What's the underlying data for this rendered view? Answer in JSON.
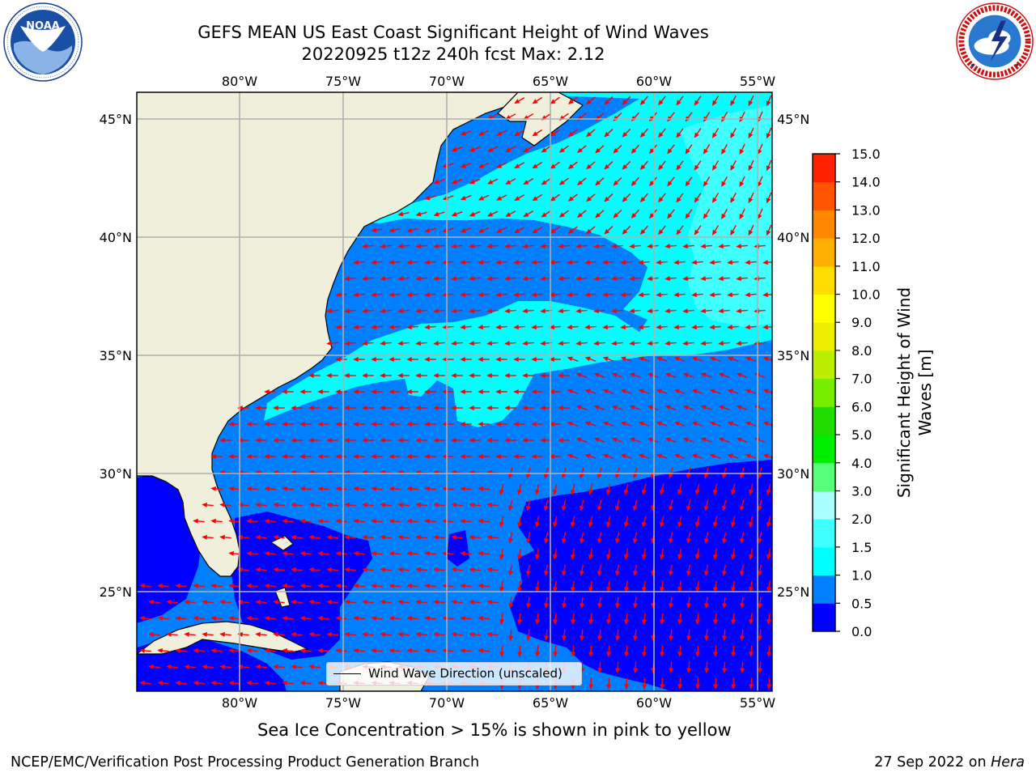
{
  "header": {
    "title_line1": "GEFS MEAN US East Coast Significant Height of Wind Waves",
    "title_line2": "20220925 t12z 240h fcst   Max: 2.12"
  },
  "logos": {
    "left": {
      "name": "NOAA",
      "text": "NOAA",
      "ring_text": "NATIONAL OCEANIC AND ATMOSPHERIC ADMINISTRATION · U.S. DEPARTMENT OF COMMERCE"
    },
    "right": {
      "name": "National Weather Service",
      "ring_text": "NATIONAL WEATHER SERVICE"
    }
  },
  "map": {
    "lon_ticks": [
      "80°W",
      "75°W",
      "70°W",
      "65°W",
      "60°W",
      "55°W"
    ],
    "lat_ticks": [
      "45°N",
      "40°N",
      "35°N",
      "30°N",
      "25°N"
    ],
    "extent": {
      "lon": [
        -85,
        -54.5
      ],
      "lat": [
        20.5,
        46
      ]
    },
    "colors": {
      "land": "#efefdc",
      "grid": "#b0b0b0",
      "arrow": "#ff0000",
      "band_0_0p5": "#0000ff",
      "band_0p5_1p0": "#0080ff",
      "band_1p0_1p5": "#00ffff",
      "band_1p5_2p0": "#3fffff"
    },
    "legend_label": "Wind Wave Direction (unscaled)"
  },
  "colorbar": {
    "label_line1": "Significant Height of Wind",
    "label_line2": "Waves [m]",
    "ticks": [
      "0.0",
      "0.5",
      "1.0",
      "1.5",
      "2.0",
      "3.0",
      "4.0",
      "5.0",
      "6.0",
      "7.0",
      "8.0",
      "9.0",
      "10.0",
      "11.0",
      "12.0",
      "13.0",
      "14.0",
      "15.0"
    ],
    "colors": [
      "#0000ff",
      "#0080ff",
      "#00ffff",
      "#3fffff",
      "#aaffff",
      "#55ff77",
      "#00ee00",
      "#22dd00",
      "#77ee00",
      "#bbee00",
      "#eeee00",
      "#ffff00",
      "#ffdd00",
      "#ffb000",
      "#ff8800",
      "#ff5500",
      "#ff2200",
      "#ff0000"
    ]
  },
  "footer": {
    "subtitle": "Sea Ice Concentration > 15% is shown in pink to yellow",
    "left": "NCEP/EMC/Verification Post Processing Product Generation Branch",
    "right_date": "27 Sep 2022 on",
    "right_host": "Hera"
  }
}
